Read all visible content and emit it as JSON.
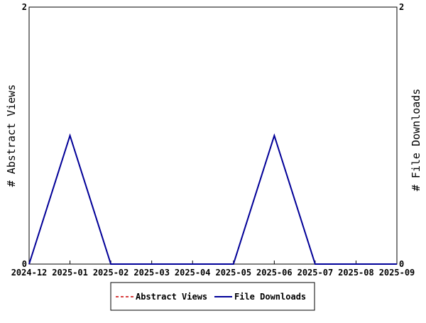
{
  "chart_data": {
    "type": "line",
    "categories": [
      "2024-12",
      "2025-01",
      "2025-02",
      "2025-03",
      "2025-04",
      "2025-05",
      "2025-06",
      "2025-07",
      "2025-08",
      "2025-09"
    ],
    "series": [
      {
        "name": "Abstract Views",
        "values": [
          0,
          1,
          0,
          0,
          0,
          0,
          1,
          0,
          0,
          0
        ],
        "color": "#cc0000",
        "dash": "dashed",
        "axis": "left"
      },
      {
        "name": "File Downloads",
        "values": [
          0,
          1,
          0,
          0,
          0,
          0,
          1,
          0,
          0,
          0
        ],
        "color": "#000099",
        "dash": "solid",
        "axis": "right"
      }
    ],
    "ylabel": "# Abstract Views",
    "y2label": "# File Downloads",
    "xlabel": "",
    "ylim": [
      0,
      2
    ],
    "y2lim": [
      0,
      2
    ],
    "yticks": [
      "0",
      "2"
    ],
    "y2ticks": [
      "0",
      "2"
    ],
    "grid": false,
    "legend_position": "bottom-center"
  }
}
